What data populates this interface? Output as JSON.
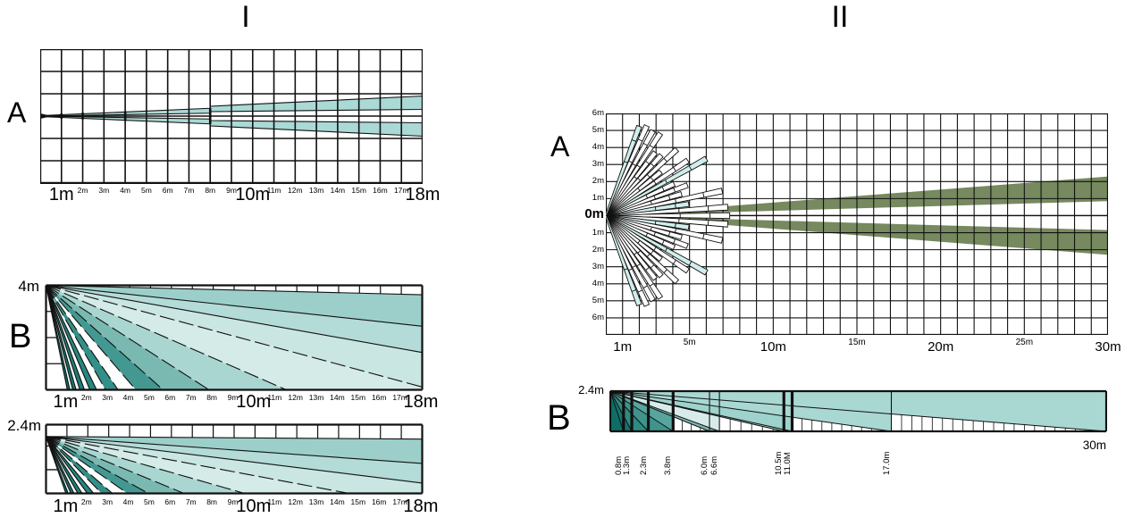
{
  "colors": {
    "ink": "#111111",
    "teal_beam": "#abd9d5",
    "teal_dark": "#0d6e67",
    "cyan_finger": "#cfeeec",
    "olive": "#76895f",
    "white": "#ffffff"
  },
  "sections": {
    "left_title": "I",
    "right_title": "II"
  },
  "axis18": {
    "labels": [
      "1m",
      "2m",
      "3m",
      "4m",
      "5m",
      "6m",
      "7m",
      "8m",
      "9m",
      "10m",
      "11m",
      "12m",
      "13m",
      "14m",
      "15m",
      "16m",
      "17m",
      "18m"
    ],
    "big_idx": [
      0,
      9,
      17
    ]
  },
  "figIA": {
    "side_label": "A",
    "cols": 18,
    "rows": 6,
    "beam": {
      "bars_m": [
        1,
        2,
        4,
        8
      ],
      "mid_m": 8,
      "top_at_mid_m": 0.35,
      "top_after_mid_m": 0.44,
      "top_at_end_m": 0.9,
      "bot_at_mid_m": 0.13,
      "bot_after_mid_m": 0.2,
      "bot_at_end_m": 0.3
    }
  },
  "figIB4": {
    "side_label": "B",
    "mount_label": "4m",
    "mount_m": 4,
    "top_extra_m": 0,
    "xmax_m": 18,
    "left_lines_m": [
      1,
      2,
      3
    ],
    "ray_ground_m": [
      1.02,
      1.14,
      1.28,
      1.44,
      1.62,
      1.84,
      2.1,
      2.42,
      2.85,
      3.45,
      4.3,
      5.6,
      7.8,
      11.5,
      18.5,
      28,
      46,
      200
    ],
    "wedge_fills": [
      "#0d6e67",
      "#ffffff",
      "#147670",
      "#ffffff",
      "#1d7e77",
      "#ffffff",
      "#278680",
      "#ffffff",
      "#338f88",
      "#ffffff",
      "#439992",
      "#7ab9b2",
      "#a9d6d1",
      "#d4ebe8",
      "#c9e6e3",
      "#b3dbd7",
      "#9ccfca"
    ],
    "dashed_rays": [
      8,
      9,
      10,
      11,
      12,
      13,
      14
    ]
  },
  "figIB24": {
    "mount_label": "2.4m",
    "mount_m": 2.4,
    "top_extra_m": 0.5,
    "xmax_m": 18,
    "left_lines_m": [
      1,
      2
    ],
    "ray_ground_m": [
      0.95,
      1.06,
      1.19,
      1.34,
      1.52,
      1.73,
      1.98,
      2.28,
      2.66,
      3.18,
      3.9,
      4.9,
      6.6,
      9.5,
      14.5,
      22,
      38,
      400
    ],
    "wedge_fills": [
      "#0d6e67",
      "#ffffff",
      "#147670",
      "#ffffff",
      "#1d7e77",
      "#ffffff",
      "#278680",
      "#ffffff",
      "#338f88",
      "#ffffff",
      "#439992",
      "#7ab9b2",
      "#a9d6d1",
      "#d4ebe8",
      "#c9e6e3",
      "#b3dbd7",
      "#9ccfca"
    ],
    "dashed_rays": [
      8,
      9,
      10,
      11,
      12,
      13,
      14
    ]
  },
  "figIIA": {
    "side_label": "A",
    "xmax_m": 30,
    "rows_up_m": 6,
    "rows_down_m": 7,
    "y_labels": [
      "6m",
      "5m",
      "4m",
      "3m",
      "2m",
      "1m",
      "0m",
      "1m",
      "2m",
      "3m",
      "4m",
      "5m",
      "6m"
    ],
    "zero_label": "0m",
    "x_ticks": [
      {
        "m": 1,
        "t": "1m",
        "big": true
      },
      {
        "m": 5,
        "t": "5m",
        "big": false
      },
      {
        "m": 10,
        "t": "10m",
        "big": true
      },
      {
        "m": 15,
        "t": "15m",
        "big": false
      },
      {
        "m": 20,
        "t": "20m",
        "big": true
      },
      {
        "m": 25,
        "t": "25m",
        "big": false
      },
      {
        "m": 30,
        "t": "30m",
        "big": true
      }
    ],
    "long_beam": {
      "range_m": 30,
      "outer_m": 2.3,
      "inner_m": 0.85
    },
    "core_radius_m": 1.05,
    "core_half_angle_deg": 72,
    "fingers": [
      {
        "deg": 0,
        "r_m": 7.4,
        "sym": false,
        "c": "white"
      },
      {
        "deg": 4,
        "r_m": 7.3,
        "sym": true,
        "c": "white"
      },
      {
        "deg": 8,
        "r_m": 5.0,
        "sym": true,
        "c": "cyan"
      },
      {
        "deg": 12,
        "r_m": 7.1,
        "sym": true,
        "c": "white"
      },
      {
        "deg": 16,
        "r_m": 4.7,
        "sym": true,
        "c": "white"
      },
      {
        "deg": 20.5,
        "r_m": 5.2,
        "sym": true,
        "c": "white"
      },
      {
        "deg": 25,
        "r_m": 4.5,
        "sym": true,
        "c": "white"
      },
      {
        "deg": 29.5,
        "r_m": 6.9,
        "sym": true,
        "c": "cyan"
      },
      {
        "deg": 34,
        "r_m": 5.9,
        "sym": true,
        "c": "white"
      },
      {
        "deg": 38.5,
        "r_m": 4.2,
        "sym": true,
        "c": "white"
      },
      {
        "deg": 43,
        "r_m": 5.8,
        "sym": true,
        "c": "white"
      },
      {
        "deg": 47.5,
        "r_m": 4.9,
        "sym": true,
        "c": "white"
      },
      {
        "deg": 52,
        "r_m": 4.8,
        "sym": true,
        "c": "white"
      },
      {
        "deg": 56.5,
        "r_m": 5.9,
        "sym": true,
        "c": "white"
      },
      {
        "deg": 61,
        "r_m": 5.8,
        "sym": true,
        "c": "white"
      },
      {
        "deg": 65.5,
        "r_m": 5.9,
        "sym": true,
        "c": "white"
      },
      {
        "deg": 69.5,
        "r_m": 5.7,
        "sym": true,
        "c": "cyan"
      }
    ]
  },
  "figIIB": {
    "side_label": "B",
    "mount_label": "2.4m",
    "end_label": "30m",
    "mount_m": 2.4,
    "range_m": 30,
    "zones_m": [
      0.8,
      1.3,
      2.3,
      3.8,
      6.0,
      6.6,
      10.5,
      11.0,
      17.0
    ],
    "zone_labels": [
      "0.8m",
      "1.3m",
      "2.3m",
      "3.8m",
      "6.0m",
      "6.6m",
      "10.5m",
      "11.0M",
      "17.0m"
    ],
    "wedge_fills": [
      "#0c6e67",
      "#15746d",
      "#2e8a82",
      "#3f948c",
      "#58a59d",
      "#79b8b1",
      "#d7ece9",
      "#9ed2cc",
      "#9ed2cc",
      "#a9d8d3"
    ],
    "ceiling_fill": "#a9d8d3",
    "thick_bars_m": [
      0.8,
      1.3,
      2.3,
      3.8,
      10.5,
      11.0
    ],
    "thin_lines_m": [
      6.0,
      6.6,
      17.0
    ],
    "sawtooth_spans_m": [
      [
        3.8,
        6.0
      ],
      [
        6.6,
        10.5
      ],
      [
        11.0,
        17.0
      ],
      [
        17.0,
        30
      ]
    ],
    "sawtooth_step_m": 0.62
  }
}
